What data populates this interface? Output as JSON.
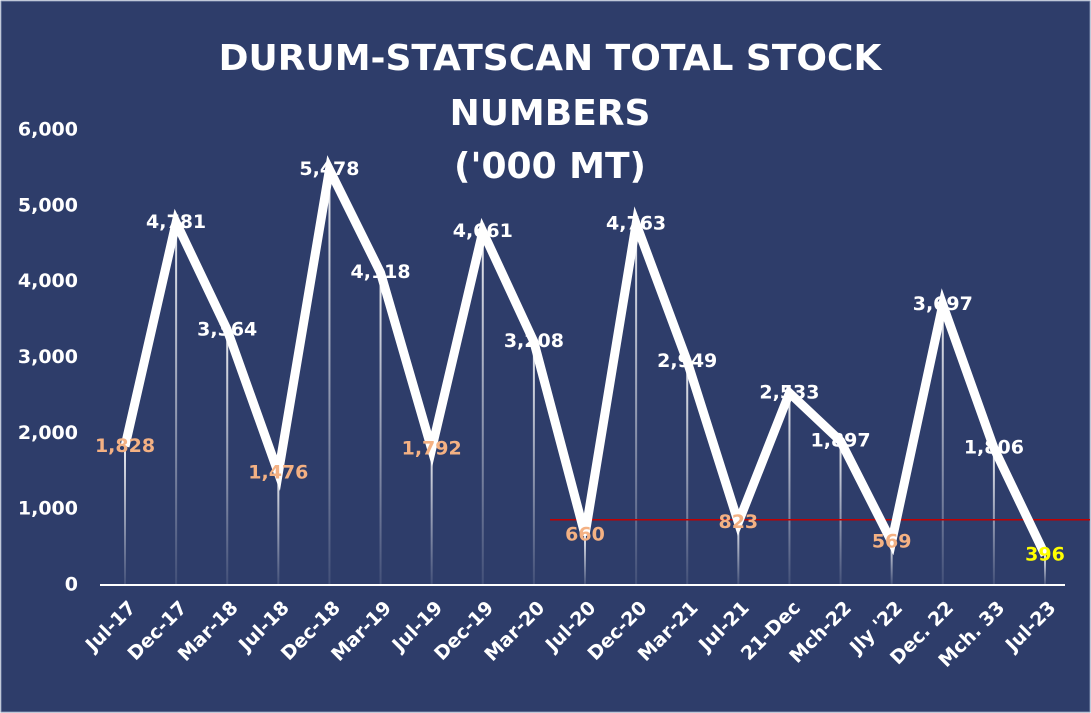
{
  "chart_data": {
    "type": "line",
    "title": [
      "DURUM-STATSCAN TOTAL STOCK",
      "NUMBERS",
      "('000 MT)"
    ],
    "categories": [
      "Jul-17",
      "Dec-17",
      "Mar-18",
      "Jul-18",
      "Dec-18",
      "Mar-19",
      "Jul-19",
      "Dec-19",
      "Mar-20",
      "Jul-20",
      "Dec-20",
      "Mar-21",
      "Jul-21",
      "21-Dec",
      "Mch-22",
      "Jly '22",
      "Dec. 22",
      "Mch. 33",
      "Jul-23"
    ],
    "values": [
      1828,
      4781,
      3364,
      1476,
      5478,
      4118,
      1792,
      4661,
      3208,
      660,
      4763,
      2949,
      823,
      2533,
      1897,
      569,
      3697,
      1806,
      396
    ],
    "value_labels": [
      "1,828",
      "4,781",
      "3,364",
      "1,476",
      "5,478",
      "4,118",
      "1,792",
      "4,661",
      "3,208",
      "660",
      "4,763",
      "2,949",
      "823",
      "2,533",
      "1,897",
      "569",
      "3,697",
      "1,806",
      "396"
    ],
    "label_colors": [
      "#f4b183",
      "#ffffff",
      "#ffffff",
      "#f4b183",
      "#ffffff",
      "#ffffff",
      "#f4b183",
      "#ffffff",
      "#ffffff",
      "#f4b183",
      "#ffffff",
      "#ffffff",
      "#f4b183",
      "#ffffff",
      "#ffffff",
      "#f4b183",
      "#ffffff",
      "#ffffff",
      "#ffff00"
    ],
    "color": "#ffffff",
    "ylim": [
      0,
      6000
    ],
    "yticks": [
      0,
      {
        "value": 1000,
        "label": "1,000"
      },
      {
        "value": 2000,
        "label": "2,000"
      },
      {
        "value": 3000,
        "label": "3,000"
      },
      {
        "value": 4000,
        "label": "4,000"
      },
      {
        "value": 5000,
        "label": "5,000"
      },
      {
        "value": 6000,
        "label": "6,000"
      }
    ],
    "reference_line": {
      "value": 860,
      "color": "#c00000"
    }
  }
}
